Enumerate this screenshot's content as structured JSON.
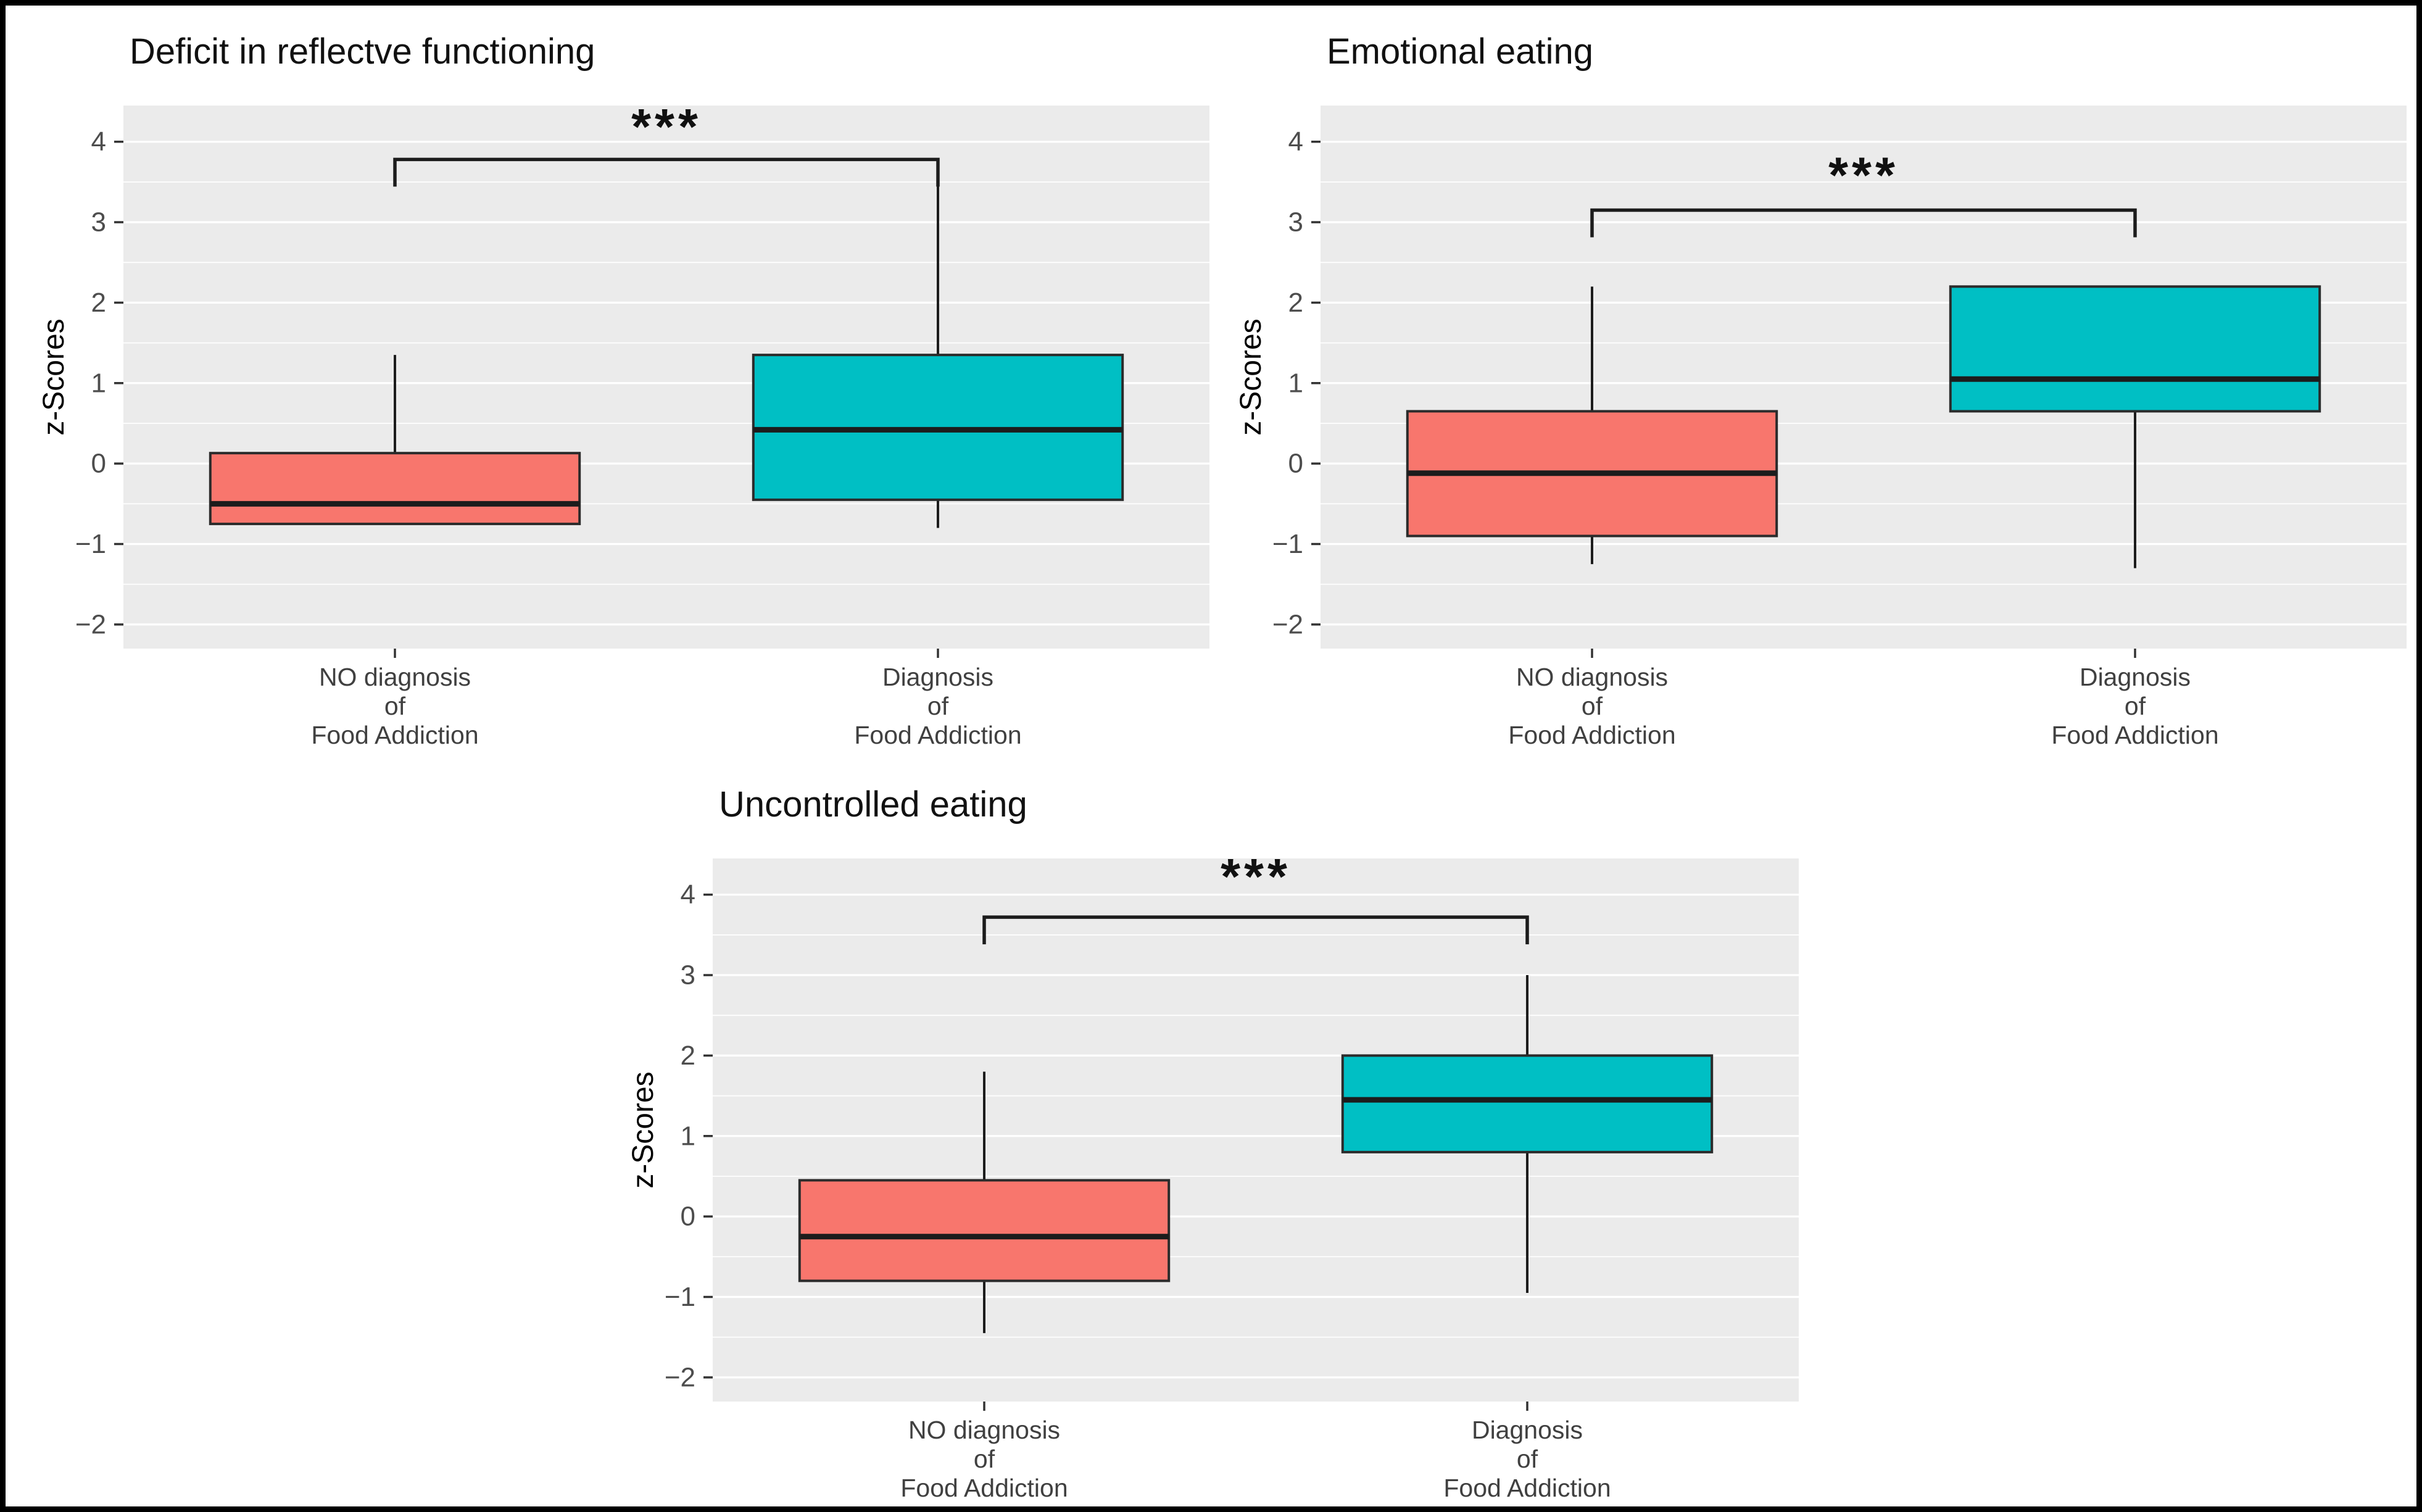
{
  "figure": {
    "background": "#FFFFFF",
    "border_color": "#000000"
  },
  "colors": {
    "panel_background": "#EBEBEB",
    "gridline": "#FFFFFF",
    "box_no_diagnosis": "#F8766D",
    "box_diagnosis": "#00BFC4",
    "box_outline": "#2B2B2B",
    "median_line": "#1C1C1C",
    "tick_label": "#4D4D4D",
    "category_label": "#404040",
    "title_color": "#111111"
  },
  "chart_data": [
    {
      "type": "boxplot",
      "title": "Deficit in reflectve functioning",
      "ylabel": "z-Scores",
      "ylim": [
        -2.3,
        4.45
      ],
      "yticks": [
        "4",
        "3",
        "2",
        "1",
        "0",
        "−1",
        "−2"
      ],
      "ytick_values": [
        4,
        3,
        2,
        1,
        0,
        -1,
        -2
      ],
      "grid": true,
      "categories": [
        {
          "lines": [
            "NO diagnosis",
            "of",
            "Food Addiction"
          ]
        },
        {
          "lines": [
            "Diagnosis",
            "of",
            "Food Addiction"
          ]
        }
      ],
      "boxes": [
        {
          "group": "NO diagnosis of Food Addiction",
          "color": "#F8766D",
          "whisker_low": -0.75,
          "q1": -0.75,
          "median": -0.5,
          "q3": 0.13,
          "whisker_high": 1.35
        },
        {
          "group": "Diagnosis of Food Addiction",
          "color": "#00BFC4",
          "whisker_low": -0.8,
          "q1": -0.45,
          "median": 0.42,
          "q3": 1.35,
          "whisker_high": 3.45
        }
      ],
      "significance": {
        "label": "***",
        "bar_y": 3.78,
        "stars_y": 4.18
      }
    },
    {
      "type": "boxplot",
      "title": "Emotional eating",
      "ylabel": "z-Scores",
      "ylim": [
        -2.3,
        4.45
      ],
      "yticks": [
        "4",
        "3",
        "2",
        "1",
        "0",
        "−1",
        "−2"
      ],
      "ytick_values": [
        4,
        3,
        2,
        1,
        0,
        -1,
        -2
      ],
      "grid": true,
      "categories": [
        {
          "lines": [
            "NO diagnosis",
            "of",
            "Food Addiction"
          ]
        },
        {
          "lines": [
            "Diagnosis",
            "of",
            "Food Addiction"
          ]
        }
      ],
      "boxes": [
        {
          "group": "NO diagnosis of Food Addiction",
          "color": "#F8766D",
          "whisker_low": -1.25,
          "q1": -0.9,
          "median": -0.12,
          "q3": 0.65,
          "whisker_high": 2.2
        },
        {
          "group": "Diagnosis of Food Addiction",
          "color": "#00BFC4",
          "whisker_low": -1.3,
          "q1": 0.65,
          "median": 1.05,
          "q3": 2.2,
          "whisker_high": 2.2
        }
      ],
      "significance": {
        "label": "***",
        "bar_y": 3.15,
        "stars_y": 3.58
      }
    },
    {
      "type": "boxplot",
      "title": "Uncontrolled eating",
      "ylabel": "z-Scores",
      "ylim": [
        -2.3,
        4.45
      ],
      "yticks": [
        "4",
        "3",
        "2",
        "1",
        "0",
        "−1",
        "−2"
      ],
      "ytick_values": [
        4,
        3,
        2,
        1,
        0,
        -1,
        -2
      ],
      "grid": true,
      "categories": [
        {
          "lines": [
            "NO diagnosis",
            "of",
            "Food Addiction"
          ]
        },
        {
          "lines": [
            "Diagnosis",
            "of",
            "Food Addiction"
          ]
        }
      ],
      "boxes": [
        {
          "group": "NO diagnosis of Food Addiction",
          "color": "#F8766D",
          "whisker_low": -1.45,
          "q1": -0.8,
          "median": -0.25,
          "q3": 0.45,
          "whisker_high": 1.8
        },
        {
          "group": "Diagnosis of Food Addiction",
          "color": "#00BFC4",
          "whisker_low": -0.95,
          "q1": 0.8,
          "median": 1.45,
          "q3": 2.0,
          "whisker_high": 3.0
        }
      ],
      "significance": {
        "label": "***",
        "bar_y": 3.72,
        "stars_y": 4.22
      }
    }
  ]
}
